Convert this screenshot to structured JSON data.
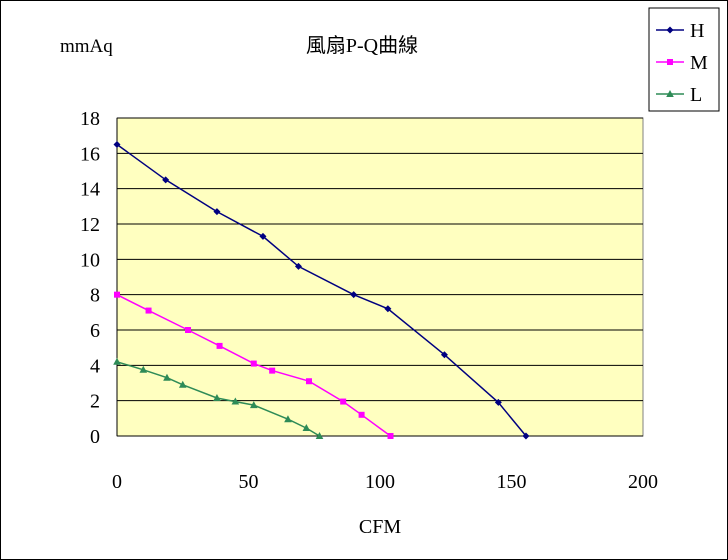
{
  "chart_data": {
    "type": "line",
    "title": "風扇P-Q曲線",
    "ylabel": "mmAq",
    "xlabel": "CFM",
    "xlim": [
      0,
      200
    ],
    "ylim": [
      0,
      18
    ],
    "x_ticks": [
      "0",
      "50",
      "100",
      "150",
      "200"
    ],
    "y_ticks": [
      "0",
      "2",
      "4",
      "6",
      "8",
      "10",
      "12",
      "14",
      "16",
      "18"
    ],
    "grid": "horizontal",
    "plot_background": "#ffffc0",
    "legend_position": "top-right",
    "series": [
      {
        "name": "H",
        "color": "#000080",
        "marker": "diamond",
        "points": [
          [
            0,
            16.5
          ],
          [
            18.5,
            14.5
          ],
          [
            38,
            12.7
          ],
          [
            55.5,
            11.3
          ],
          [
            69,
            9.6
          ],
          [
            90,
            8.0
          ],
          [
            103,
            7.2
          ],
          [
            124.5,
            4.6
          ],
          [
            145,
            1.9
          ],
          [
            155.5,
            0
          ]
        ]
      },
      {
        "name": "M",
        "color": "#ff00ff",
        "marker": "square",
        "points": [
          [
            0,
            8.0
          ],
          [
            12,
            7.1
          ],
          [
            27,
            6.0
          ],
          [
            39,
            5.1
          ],
          [
            52,
            4.1
          ],
          [
            59,
            3.7
          ],
          [
            73,
            3.1
          ],
          [
            86,
            1.95
          ],
          [
            93,
            1.2
          ],
          [
            104,
            0
          ]
        ]
      },
      {
        "name": "L",
        "color": "#2e8b57",
        "marker": "triangle",
        "points": [
          [
            0,
            4.2
          ],
          [
            10,
            3.75
          ],
          [
            19,
            3.3
          ],
          [
            25,
            2.9
          ],
          [
            38,
            2.15
          ],
          [
            45,
            1.95
          ],
          [
            52,
            1.75
          ],
          [
            65,
            0.95
          ],
          [
            72,
            0.45
          ],
          [
            77,
            0
          ]
        ]
      }
    ]
  }
}
